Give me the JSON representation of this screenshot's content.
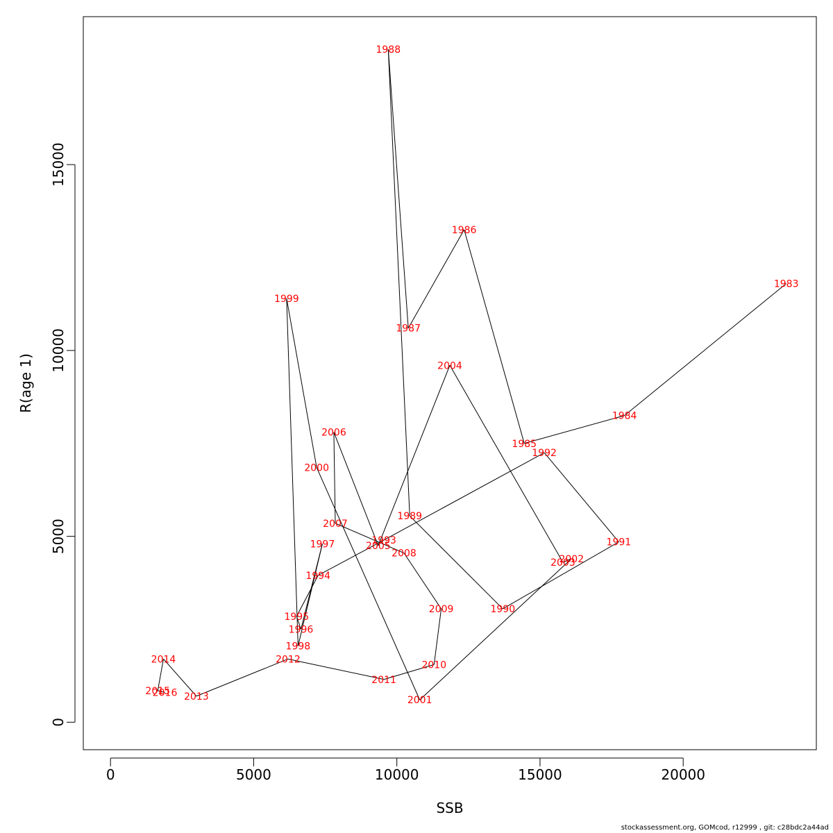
{
  "chart_data": {
    "type": "line",
    "title": "",
    "xlabel": "SSB",
    "ylabel": "R(age 1)",
    "xlim": [
      -950,
      24650
    ],
    "ylim": [
      -740,
      18980
    ],
    "xticks": [
      0,
      5000,
      10000,
      15000,
      20000
    ],
    "yticks": [
      0,
      5000,
      10000,
      15000
    ],
    "grid": false,
    "line_color": "#000000",
    "label_color": "#ff0000",
    "points": [
      {
        "label": "1983",
        "x": 23600,
        "y": 11800
      },
      {
        "label": "1984",
        "x": 17950,
        "y": 8250
      },
      {
        "label": "1985",
        "x": 14450,
        "y": 7500
      },
      {
        "label": "1986",
        "x": 12350,
        "y": 13250
      },
      {
        "label": "1987",
        "x": 10400,
        "y": 10600
      },
      {
        "label": "1988",
        "x": 9700,
        "y": 18100
      },
      {
        "label": "1989",
        "x": 10450,
        "y": 5550
      },
      {
        "label": "1990",
        "x": 13700,
        "y": 3050
      },
      {
        "label": "1991",
        "x": 17750,
        "y": 4850
      },
      {
        "label": "1992",
        "x": 15150,
        "y": 7250
      },
      {
        "label": "1993",
        "x": 9550,
        "y": 4900
      },
      {
        "label": "1994",
        "x": 7250,
        "y": 3950
      },
      {
        "label": "1995",
        "x": 6500,
        "y": 2850
      },
      {
        "label": "1996",
        "x": 6650,
        "y": 2500
      },
      {
        "label": "1997",
        "x": 7400,
        "y": 4800
      },
      {
        "label": "1998",
        "x": 6550,
        "y": 2050
      },
      {
        "label": "1999",
        "x": 6150,
        "y": 11400
      },
      {
        "label": "2000",
        "x": 7200,
        "y": 6850
      },
      {
        "label": "2001",
        "x": 10800,
        "y": 600
      },
      {
        "label": "2002",
        "x": 16100,
        "y": 4400
      },
      {
        "label": "2003",
        "x": 15800,
        "y": 4300
      },
      {
        "label": "2004",
        "x": 11850,
        "y": 9600
      },
      {
        "label": "2005",
        "x": 9350,
        "y": 4750
      },
      {
        "label": "2006",
        "x": 7800,
        "y": 7800
      },
      {
        "label": "2007",
        "x": 7850,
        "y": 5350
      },
      {
        "label": "2008",
        "x": 10250,
        "y": 4550
      },
      {
        "label": "2009",
        "x": 11550,
        "y": 3050
      },
      {
        "label": "2010",
        "x": 11300,
        "y": 1550
      },
      {
        "label": "2011",
        "x": 9550,
        "y": 1150
      },
      {
        "label": "2012",
        "x": 6200,
        "y": 1700
      },
      {
        "label": "2013",
        "x": 3000,
        "y": 700
      },
      {
        "label": "2014",
        "x": 1850,
        "y": 1700
      },
      {
        "label": "2015",
        "x": 1650,
        "y": 850
      },
      {
        "label": "2016",
        "x": 1900,
        "y": 800
      }
    ]
  },
  "footer": "stockassessment.org, GOMcod, r12999 , git: c28bdc2a44ad"
}
